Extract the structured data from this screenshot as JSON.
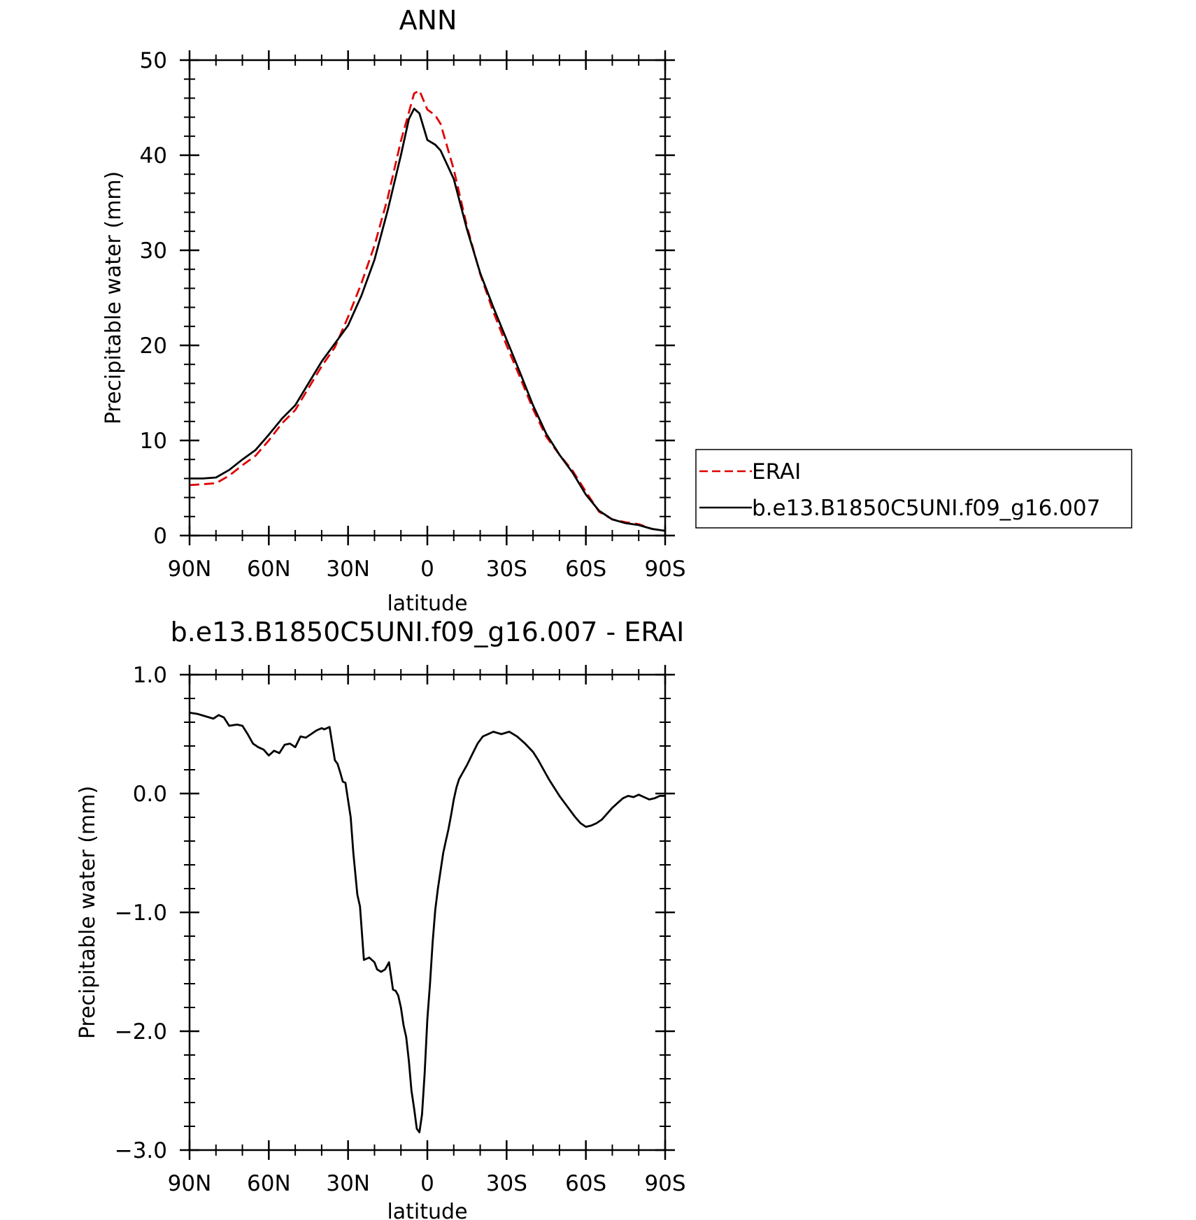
{
  "chart_data": [
    {
      "type": "line",
      "title": "ANN",
      "xlabel": "latitude",
      "ylabel": "Precipitable water (mm)",
      "xlim": [
        90,
        -90
      ],
      "ylim": [
        0,
        50
      ],
      "x_ticks": [
        90,
        60,
        30,
        0,
        -30,
        -60,
        -90
      ],
      "x_tick_labels": [
        "90N",
        "60N",
        "30N",
        "0",
        "30S",
        "60S",
        "90S"
      ],
      "y_ticks": [
        0,
        10,
        20,
        30,
        40,
        50
      ],
      "y_tick_labels": [
        "0",
        "10",
        "20",
        "30",
        "40",
        "50"
      ],
      "legend": {
        "placement": "right",
        "entries": [
          "ERAI",
          "b.e13.B1850C5UNI.f09_g16.007"
        ]
      },
      "series": [
        {
          "name": "ERAI",
          "color": "#e00000",
          "dash": true,
          "x": [
            90,
            85,
            80,
            75,
            70,
            65,
            60,
            55,
            50,
            45,
            40,
            35,
            30,
            25,
            20,
            15,
            10,
            7,
            5,
            3,
            0,
            -3,
            -5,
            -10,
            -15,
            -20,
            -25,
            -30,
            -35,
            -40,
            -45,
            -50,
            -55,
            -60,
            -65,
            -70,
            -75,
            -80,
            -85,
            -90
          ],
          "values": [
            5.3,
            5.4,
            5.5,
            6.3,
            7.4,
            8.4,
            10.0,
            11.8,
            13.2,
            15.5,
            17.8,
            19.8,
            23.0,
            26.5,
            30.5,
            35.5,
            41.5,
            44.5,
            46.5,
            46.8,
            44.8,
            44.2,
            43.3,
            38.5,
            32.5,
            27.5,
            23.5,
            20.0,
            16.7,
            13.3,
            10.4,
            8.5,
            6.8,
            4.6,
            2.5,
            1.7,
            1.4,
            1.2,
            0.7,
            0.5
          ]
        },
        {
          "name": "b.e13.B1850C5UNI.f09_g16.007",
          "color": "#000000",
          "dash": false,
          "x": [
            90,
            85,
            80,
            75,
            70,
            65,
            60,
            55,
            50,
            45,
            40,
            35,
            30,
            25,
            20,
            15,
            10,
            7,
            5,
            3,
            0,
            -3,
            -5,
            -10,
            -15,
            -20,
            -25,
            -30,
            -35,
            -40,
            -45,
            -50,
            -55,
            -60,
            -65,
            -70,
            -75,
            -80,
            -85,
            -90
          ],
          "values": [
            6.0,
            6.0,
            6.1,
            6.9,
            8.0,
            9.0,
            10.6,
            12.3,
            13.7,
            16.0,
            18.3,
            20.2,
            22.1,
            25.2,
            29.0,
            34.2,
            40.0,
            43.8,
            44.9,
            44.4,
            41.6,
            41.1,
            40.5,
            37.5,
            32.2,
            27.6,
            24.0,
            20.6,
            17.2,
            13.7,
            10.7,
            8.5,
            6.6,
            4.3,
            2.6,
            1.7,
            1.3,
            1.1,
            0.7,
            0.5
          ]
        }
      ]
    },
    {
      "type": "line",
      "title": "b.e13.B1850C5UNI.f09_g16.007 - ERAI",
      "xlabel": "latitude",
      "ylabel": "Precipitable water (mm)",
      "xlim": [
        90,
        -90
      ],
      "ylim": [
        -3.0,
        1.0
      ],
      "x_ticks": [
        90,
        60,
        30,
        0,
        -30,
        -60,
        -90
      ],
      "x_tick_labels": [
        "90N",
        "60N",
        "30N",
        "0",
        "30S",
        "60S",
        "90S"
      ],
      "y_ticks": [
        -3.0,
        -2.0,
        -1.0,
        0.0,
        1.0
      ],
      "y_tick_labels": [
        "-3.0",
        "-2.0",
        "-1.0",
        "0.0",
        "1.0"
      ],
      "series": [
        {
          "color": "#000000",
          "dash": false,
          "x": [
            90,
            87,
            84,
            81,
            79,
            77,
            75,
            72,
            70,
            68,
            66,
            64,
            62,
            60,
            58,
            56,
            54,
            52,
            50,
            48,
            46,
            44,
            42,
            40,
            39,
            37,
            35,
            34,
            33,
            32,
            31,
            29,
            28,
            26.5,
            25.5,
            24,
            22,
            20,
            19,
            17.5,
            16,
            14.5,
            13,
            12,
            11,
            10,
            9,
            8,
            7,
            6,
            5,
            4,
            3,
            2,
            1,
            0,
            -1,
            -2,
            -3,
            -4,
            -5,
            -6,
            -7,
            -8,
            -9,
            -10,
            -11,
            -12,
            -13,
            -14,
            -15,
            -17,
            -19,
            -21,
            -23,
            -25,
            -28,
            -31,
            -34,
            -37,
            -40,
            -42,
            -44,
            -46,
            -48,
            -50,
            -52,
            -54,
            -56,
            -58,
            -60,
            -62,
            -64,
            -66,
            -68,
            -70,
            -72,
            -74,
            -76,
            -78,
            -80,
            -82,
            -84,
            -86,
            -88,
            -90
          ],
          "values": [
            0.68,
            0.67,
            0.65,
            0.63,
            0.66,
            0.64,
            0.57,
            0.58,
            0.57,
            0.5,
            0.42,
            0.39,
            0.37,
            0.32,
            0.36,
            0.34,
            0.41,
            0.42,
            0.39,
            0.48,
            0.47,
            0.5,
            0.53,
            0.55,
            0.54,
            0.56,
            0.28,
            0.25,
            0.18,
            0.1,
            0.09,
            -0.2,
            -0.5,
            -0.85,
            -0.95,
            -1.4,
            -1.38,
            -1.42,
            -1.48,
            -1.5,
            -1.48,
            -1.42,
            -1.65,
            -1.66,
            -1.7,
            -1.8,
            -1.95,
            -2.05,
            -2.25,
            -2.5,
            -2.65,
            -2.82,
            -2.85,
            -2.7,
            -2.35,
            -1.9,
            -1.6,
            -1.25,
            -0.98,
            -0.8,
            -0.65,
            -0.5,
            -0.4,
            -0.3,
            -0.18,
            -0.05,
            0.05,
            0.12,
            0.16,
            0.2,
            0.24,
            0.33,
            0.42,
            0.48,
            0.5,
            0.52,
            0.5,
            0.52,
            0.48,
            0.42,
            0.35,
            0.28,
            0.2,
            0.12,
            0.05,
            -0.02,
            -0.08,
            -0.14,
            -0.2,
            -0.25,
            -0.28,
            -0.27,
            -0.25,
            -0.22,
            -0.17,
            -0.12,
            -0.08,
            -0.04,
            -0.02,
            -0.03,
            -0.01,
            -0.03,
            -0.05,
            -0.04,
            -0.02,
            -0.02
          ]
        }
      ]
    }
  ]
}
